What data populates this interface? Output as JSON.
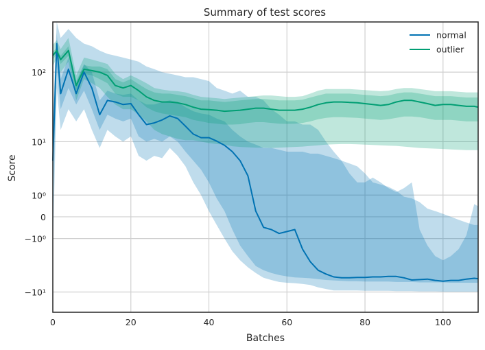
{
  "chart_data": {
    "type": "line",
    "title": "Summary of test scores",
    "xlabel": "Batches",
    "ylabel": "Score",
    "yscale": "symlog",
    "xlim": [
      0,
      109
    ],
    "ylim": [
      -20,
      500
    ],
    "grid": true,
    "legend_position": "top-right",
    "x_ticks": [
      0,
      20,
      40,
      60,
      80,
      100
    ],
    "y_ticks": [
      {
        "value": 100,
        "label": "10²"
      },
      {
        "value": 10,
        "label": "10¹"
      },
      {
        "value": 1,
        "label": "10⁰"
      },
      {
        "value": 0,
        "label": "0"
      },
      {
        "value": -1,
        "label": "−10⁰"
      },
      {
        "value": -10,
        "label": "−10¹"
      }
    ],
    "x": [
      0,
      1,
      2,
      4,
      6,
      8,
      10,
      12,
      14,
      16,
      18,
      20,
      22,
      24,
      26,
      28,
      30,
      32,
      34,
      36,
      38,
      40,
      42,
      44,
      46,
      48,
      50,
      52,
      54,
      56,
      58,
      60,
      62,
      64,
      66,
      68,
      70,
      72,
      74,
      76,
      78,
      80,
      82,
      84,
      86,
      88,
      90,
      92,
      94,
      96,
      98,
      100,
      102,
      104,
      106,
      108,
      109
    ],
    "series": [
      {
        "name": "normal",
        "color": "#0072b2",
        "values": [
          5,
          250,
          50,
          110,
          50,
          100,
          60,
          25,
          40,
          38,
          35,
          36,
          25,
          18,
          19,
          21,
          24,
          22,
          17,
          13,
          11.5,
          11.5,
          10.2,
          8.8,
          7,
          5,
          2.7,
          0.2,
          -0.4,
          -0.5,
          -0.7,
          -0.6,
          -0.5,
          -1.8,
          -3.2,
          -4.5,
          -5.2,
          -5.8,
          -6,
          -6,
          -5.9,
          -5.9,
          -5.8,
          -5.8,
          -5.7,
          -5.7,
          -6,
          -6.5,
          -6.4,
          -6.3,
          -6.6,
          -6.8,
          -6.6,
          -6.6,
          -6.3,
          -6.1,
          -6.2
        ],
        "band_outer": {
          "lower": [
            -2,
            60,
            15,
            30,
            20,
            30,
            15,
            8,
            15,
            12,
            10,
            12,
            6,
            5,
            6,
            5.5,
            8,
            6,
            4,
            2,
            1,
            0.2,
            -0.3,
            -1,
            -2,
            -3,
            -4,
            -5,
            -6,
            -6.5,
            -7,
            -7.2,
            -7.3,
            -7.5,
            -7.8,
            -8.5,
            -9,
            -9.5,
            -9.5,
            -9.5,
            -9.5,
            -9.6,
            -9.6,
            -9.6,
            -9.6,
            -9.7,
            -9.7,
            -9.7,
            -9.8,
            -9.8,
            -9.8,
            -9.9,
            -9.9,
            -9.9,
            -9.9,
            -9.9,
            -9.9
          ],
          "upper": [
            20,
            500,
            300,
            400,
            300,
            250,
            230,
            200,
            180,
            170,
            160,
            150,
            140,
            120,
            110,
            100,
            95,
            90,
            85,
            85,
            80,
            75,
            60,
            55,
            50,
            55,
            45,
            45,
            40,
            30,
            25,
            20,
            20,
            18,
            18,
            15,
            10,
            7,
            5,
            3,
            2,
            2,
            2.5,
            2,
            1.5,
            1.2,
            1.5,
            2,
            -0.5,
            -1.5,
            -2.5,
            -3,
            -2.5,
            -1.8,
            -0.8,
            0.5,
            0.4
          ]
        },
        "band_inner": {
          "lower": [
            0,
            120,
            30,
            60,
            35,
            55,
            30,
            15,
            25,
            22,
            20,
            22,
            12,
            10,
            11,
            10,
            12,
            10,
            7,
            5,
            3.5,
            2,
            0.8,
            0.2,
            -0.5,
            -1.5,
            -2.5,
            -3.8,
            -4.5,
            -5,
            -5.4,
            -5.7,
            -5.9,
            -6,
            -6.1,
            -6.3,
            -6.5,
            -6.6,
            -6.7,
            -6.8,
            -6.8,
            -6.9,
            -6.9,
            -6.9,
            -6.9,
            -7,
            -7,
            -7,
            -7.1,
            -7.1,
            -7.1,
            -7.1,
            -7.2,
            -7.2,
            -7.2,
            -7.2,
            -7.2
          ],
          "upper": [
            10,
            350,
            80,
            160,
            70,
            130,
            100,
            40,
            55,
            50,
            48,
            50,
            40,
            35,
            35,
            38,
            40,
            38,
            32,
            28,
            26,
            25,
            22,
            20,
            15,
            12,
            10,
            9,
            8,
            8,
            7.5,
            7,
            7,
            7,
            6.5,
            6.5,
            6,
            5.5,
            5,
            4.5,
            4,
            3,
            2,
            1.8,
            1.6,
            1.3,
            0.9,
            0.8,
            0.6,
            0.3,
            0.2,
            0.1,
            0,
            -0.1,
            -0.2,
            -0.3,
            -0.3
          ]
        }
      },
      {
        "name": "outlier",
        "color": "#009e73",
        "values": [
          170,
          200,
          150,
          200,
          65,
          110,
          105,
          100,
          90,
          65,
          60,
          65,
          55,
          45,
          40,
          38,
          38,
          37,
          35,
          32,
          30,
          29.5,
          29,
          28,
          28.5,
          29,
          30,
          31,
          31,
          30,
          29,
          29,
          29,
          30,
          32,
          35,
          37,
          38,
          38,
          37.5,
          37,
          36,
          35,
          34,
          35,
          38,
          40,
          40,
          38,
          36,
          34,
          35,
          35,
          34,
          33,
          33,
          32
        ],
        "band_outer": {
          "lower": [
            120,
            160,
            100,
            140,
            40,
            80,
            70,
            60,
            45,
            35,
            30,
            30,
            25,
            20,
            15,
            13,
            12,
            11,
            10.5,
            10.5,
            10,
            9.5,
            9.2,
            9,
            8.5,
            8.3,
            8.2,
            8.1,
            8.1,
            8,
            8.1,
            8.2,
            8.3,
            8.4,
            8.6,
            8.8,
            9,
            9.1,
            9.2,
            9.2,
            9.1,
            9,
            8.9,
            8.8,
            8.7,
            8.6,
            8.4,
            8.2,
            8,
            7.9,
            7.8,
            7.7,
            7.6,
            7.5,
            7.4,
            7.4,
            7.4
          ],
          "upper": [
            240,
            280,
            210,
            300,
            90,
            160,
            150,
            140,
            130,
            95,
            80,
            90,
            80,
            70,
            60,
            57,
            55,
            54,
            52,
            48,
            45,
            44,
            43,
            42,
            43,
            44,
            45,
            46,
            47,
            47,
            46,
            45,
            45,
            46,
            50,
            55,
            58,
            58,
            58,
            58,
            57,
            56,
            55,
            54,
            55,
            58,
            60,
            60,
            58,
            56,
            54,
            54,
            54,
            53,
            52,
            52,
            52
          ]
        },
        "band_inner": {
          "lower": [
            150,
            180,
            130,
            170,
            55,
            95,
            90,
            80,
            70,
            50,
            45,
            45,
            40,
            32,
            28,
            26,
            25,
            24,
            23,
            21,
            20,
            19,
            18.5,
            18,
            18,
            18.2,
            19,
            19.5,
            19.5,
            19,
            18.5,
            18.4,
            18.5,
            19,
            20,
            21.5,
            22.5,
            23,
            23,
            22.8,
            22.5,
            22,
            21.5,
            21,
            21.5,
            22.5,
            23.5,
            23.5,
            23,
            22,
            21,
            21,
            21,
            20.5,
            20,
            20,
            20
          ],
          "upper": [
            190,
            220,
            170,
            230,
            75,
            125,
            120,
            120,
            110,
            80,
            72,
            80,
            68,
            58,
            52,
            50,
            50,
            48,
            46,
            43,
            40,
            40,
            39,
            38,
            39,
            40,
            41,
            42,
            42,
            41,
            40,
            40,
            40,
            41,
            44,
            47,
            50,
            50,
            50,
            50,
            49,
            48,
            47,
            46,
            47,
            50,
            52,
            52,
            50,
            48,
            46,
            46,
            46,
            45,
            44,
            44,
            44
          ]
        }
      }
    ]
  }
}
